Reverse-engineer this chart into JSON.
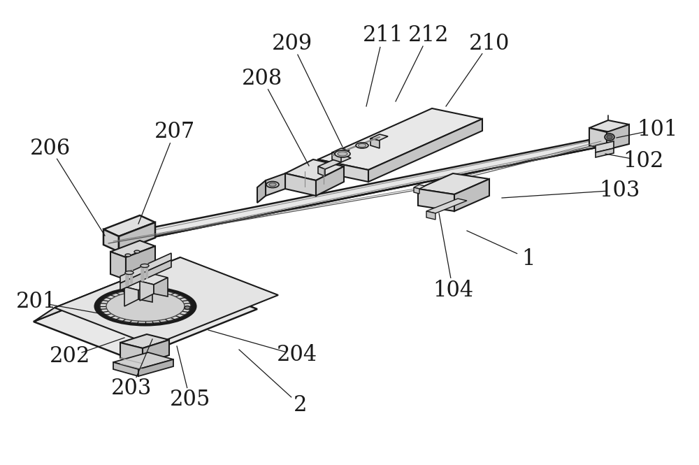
{
  "bg_color": "#ffffff",
  "line_color": "#1a1a1a",
  "label_fontsize": 22,
  "figsize": [
    10.0,
    6.65
  ],
  "dpi": 100,
  "labels": [
    [
      "101",
      940,
      185,
      882,
      197
    ],
    [
      "102",
      920,
      230,
      866,
      220
    ],
    [
      "103",
      886,
      272,
      718,
      283
    ],
    [
      "1",
      756,
      370,
      668,
      330
    ],
    [
      "104",
      648,
      415,
      628,
      305
    ],
    [
      "210",
      700,
      62,
      638,
      152
    ],
    [
      "212",
      613,
      50,
      566,
      145
    ],
    [
      "211",
      548,
      50,
      524,
      152
    ],
    [
      "209",
      418,
      62,
      490,
      210
    ],
    [
      "208",
      375,
      112,
      442,
      237
    ],
    [
      "207",
      250,
      188,
      198,
      320
    ],
    [
      "206",
      72,
      212,
      150,
      337
    ],
    [
      "201",
      52,
      432,
      152,
      450
    ],
    [
      "202",
      100,
      510,
      178,
      483
    ],
    [
      "203",
      188,
      556,
      218,
      485
    ],
    [
      "205",
      272,
      572,
      253,
      495
    ],
    [
      "204",
      425,
      508,
      298,
      472
    ],
    [
      "2",
      430,
      580,
      342,
      500
    ]
  ]
}
